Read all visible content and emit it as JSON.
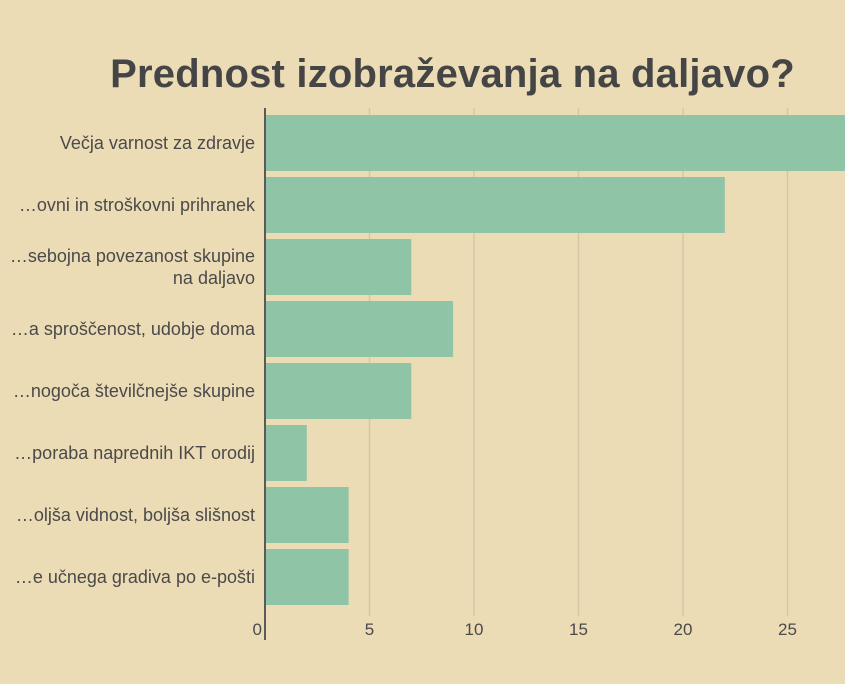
{
  "chart_data": {
    "type": "bar",
    "orientation": "horizontal",
    "title": "Prednost izobraževanja na daljavo?",
    "categories": [
      [
        "Večja varnost za zdravje"
      ],
      [
        "…ovni in stroškovni prihranek"
      ],
      [
        "…sebojna povezanost skupine",
        "na daljavo"
      ],
      [
        "…a sproščenost, udobje doma"
      ],
      [
        "…nogoča številčnejše skupine"
      ],
      [
        "…poraba naprednih IKT orodij"
      ],
      [
        "…oljša vidnost, boljša slišnost"
      ],
      [
        "…e učnega gradiva po e-pošti"
      ]
    ],
    "values": [
      28,
      22,
      7,
      9,
      7,
      2,
      4,
      4
    ],
    "xlim": [
      0,
      28
    ],
    "xticks": [
      0,
      5,
      10,
      15,
      20,
      25
    ],
    "grid": true,
    "colors": {
      "bar": "#8fc4a6",
      "background": "#ecdcb6",
      "grid": "#d6c7a2",
      "axis": "#5a5a5a"
    }
  }
}
